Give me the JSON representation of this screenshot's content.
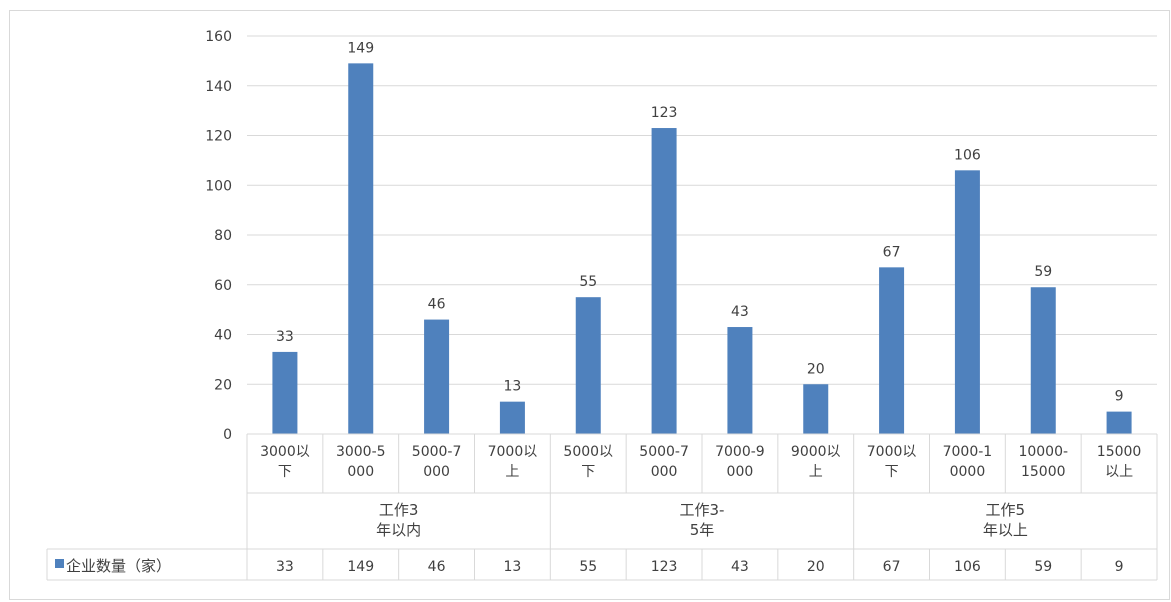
{
  "chart_data": {
    "type": "bar",
    "groups": [
      {
        "label_lines": [
          "工作3",
          "年以内"
        ],
        "span": 4
      },
      {
        "label_lines": [
          "工作3-",
          "5年"
        ],
        "span": 4
      },
      {
        "label_lines": [
          "工作5",
          "年以上"
        ],
        "span": 4
      }
    ],
    "categories": [
      [
        "3000以",
        "下"
      ],
      [
        "3000-5",
        "000"
      ],
      [
        "5000-7",
        "000"
      ],
      [
        "7000以",
        "上"
      ],
      [
        "5000以",
        "下"
      ],
      [
        "5000-7",
        "000"
      ],
      [
        "7000-9",
        "000"
      ],
      [
        "9000以",
        "上"
      ],
      [
        "7000以",
        "下"
      ],
      [
        "7000-1",
        "0000"
      ],
      [
        "10000-",
        "15000"
      ],
      [
        "15000",
        "以上"
      ]
    ],
    "series": [
      {
        "name": "企业数量（家）",
        "values": [
          33,
          149,
          46,
          13,
          55,
          123,
          43,
          20,
          67,
          106,
          59,
          9
        ]
      }
    ],
    "ylim": [
      0,
      160
    ],
    "yticks": [
      0,
      20,
      40,
      60,
      80,
      100,
      120,
      140,
      160
    ],
    "grid": true,
    "data_labels": true,
    "data_table": true,
    "legend_marker_glyph": "■",
    "colors": {
      "bar": "#4f81bd",
      "grid": "#d9d9d9",
      "text": "#404040"
    }
  }
}
